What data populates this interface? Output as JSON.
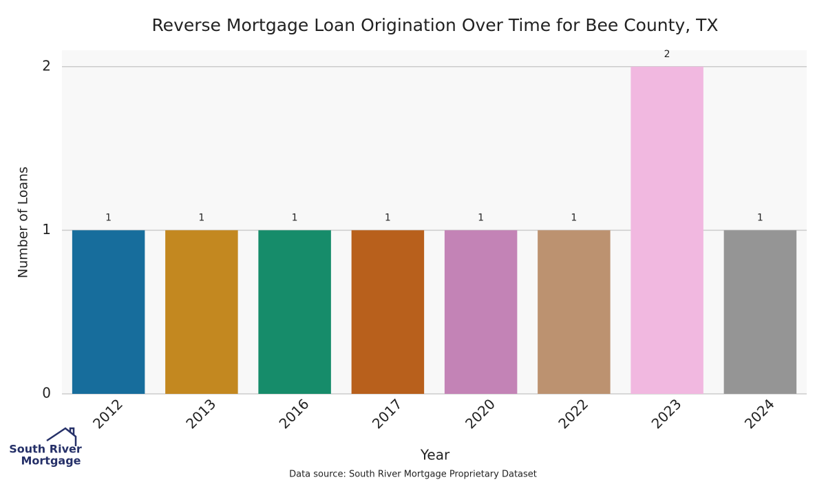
{
  "chart_data": {
    "type": "bar",
    "title": "Reverse Mortgage Loan Origination Over Time for Bee County, TX",
    "x_label": "Year",
    "y_label": "Number of Loans",
    "categories": [
      "2012",
      "2013",
      "2016",
      "2017",
      "2020",
      "2022",
      "2023",
      "2024"
    ],
    "values": [
      1,
      1,
      1,
      1,
      1,
      1,
      2,
      1
    ],
    "colors": [
      "#176d9c",
      "#c38820",
      "#168c6a",
      "#b8601c",
      "#c383b6",
      "#bc9270",
      "#f1b8e0",
      "#959595"
    ],
    "ylim": [
      0,
      2.1
    ],
    "yticks": [
      0,
      1,
      2
    ],
    "grid": true,
    "source": "Data source: South River Mortgage Proprietary Dataset",
    "logo": {
      "line1": "South River",
      "line2": "Mortgage"
    }
  }
}
